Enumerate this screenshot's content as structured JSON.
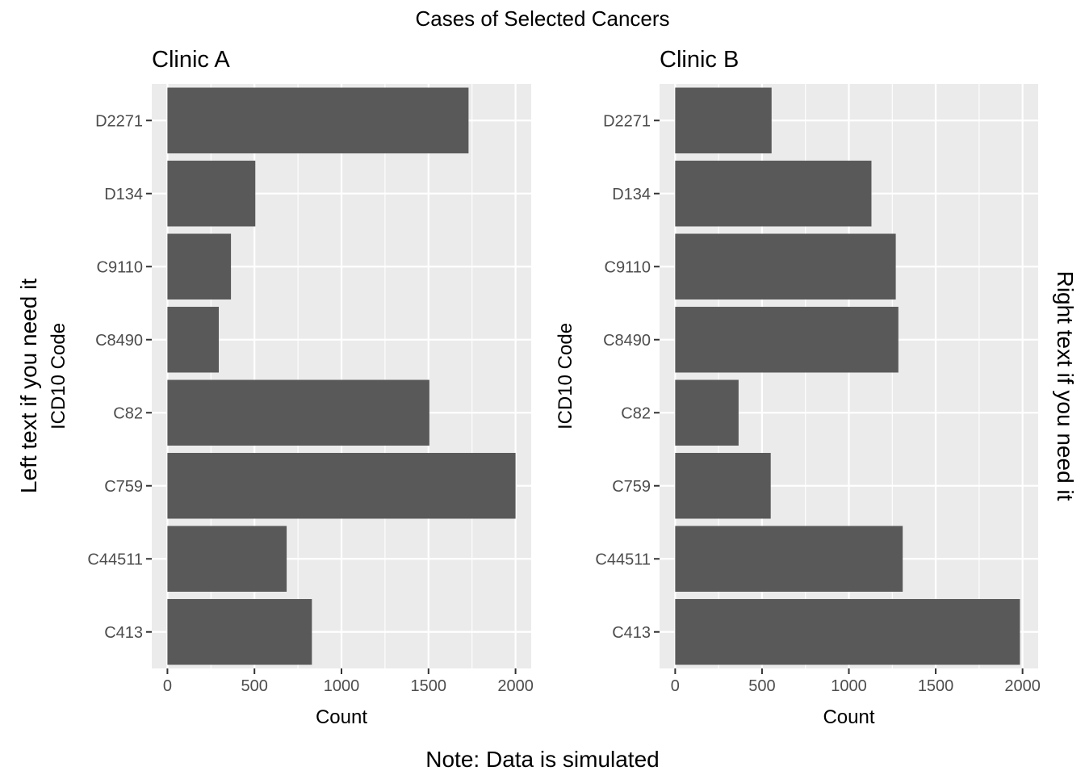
{
  "title": "Cases of Selected Cancers",
  "left_text": "Left text if you need it",
  "right_text": "Right text if you need it",
  "note": "Note: Data is simulated",
  "colors": {
    "panel_bg": "#ebebeb",
    "grid": "#ffffff",
    "bar": "#595959"
  },
  "chart_data": [
    {
      "type": "bar",
      "orientation": "horizontal",
      "title": "Clinic A",
      "xlabel": "Count",
      "ylabel": "ICD10 Code",
      "xlim": [
        -90,
        2090
      ],
      "xticks": [
        0,
        500,
        1000,
        1500,
        2000
      ],
      "grid": true,
      "categories": [
        "D2271",
        "D134",
        "C9110",
        "C8490",
        "C82",
        "C759",
        "C44511",
        "C413"
      ],
      "values": [
        1730,
        505,
        365,
        295,
        1505,
        2000,
        685,
        830
      ]
    },
    {
      "type": "bar",
      "orientation": "horizontal",
      "title": "Clinic B",
      "xlabel": "Count",
      "ylabel": "ICD10 Code",
      "xlim": [
        -90,
        2090
      ],
      "xticks": [
        0,
        500,
        1000,
        1500,
        2000
      ],
      "grid": true,
      "categories": [
        "D2271",
        "D134",
        "C9110",
        "C8490",
        "C82",
        "C759",
        "C44511",
        "C413"
      ],
      "values": [
        555,
        1130,
        1270,
        1285,
        365,
        550,
        1310,
        1985
      ]
    }
  ]
}
